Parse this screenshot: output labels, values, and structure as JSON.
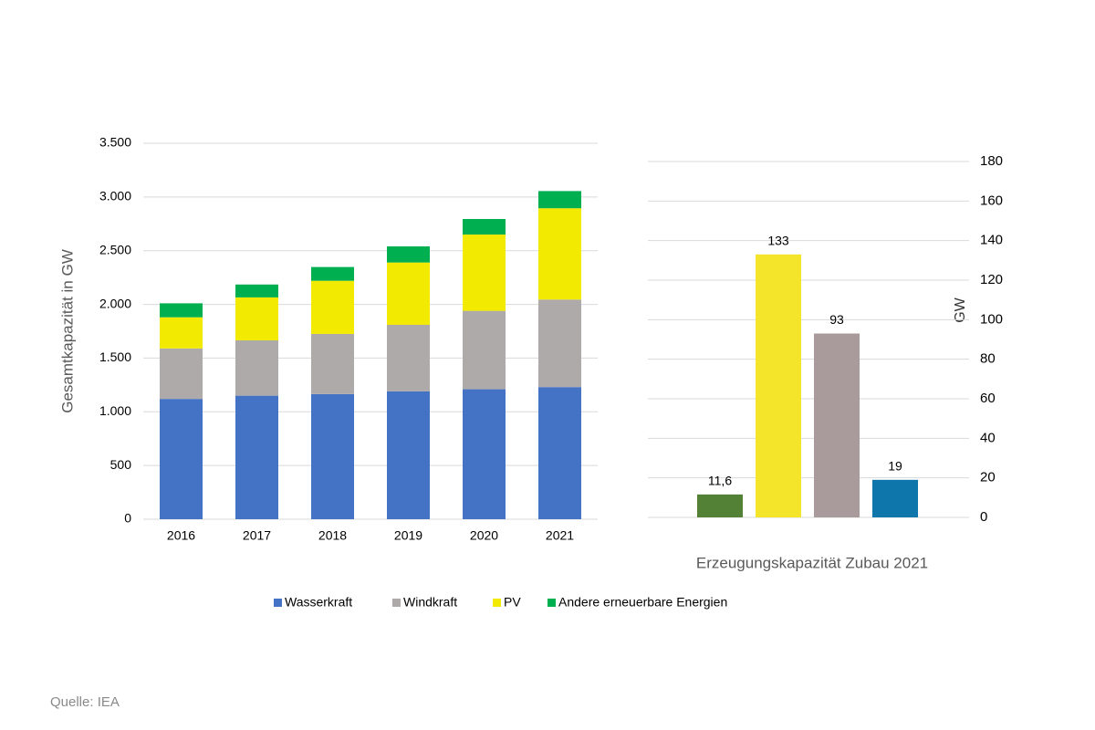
{
  "source": "Quelle: IEA",
  "chart_data": [
    {
      "type": "stacked-bar",
      "y_label": "Gesamtkapazität in GW",
      "categories": [
        "2016",
        "2017",
        "2018",
        "2019",
        "2020",
        "2021"
      ],
      "series": [
        {
          "name": "Wasserkraft",
          "color": "#4472c4",
          "values": [
            1120,
            1150,
            1165,
            1190,
            1210,
            1230
          ]
        },
        {
          "name": "Windkraft",
          "color": "#aeaaaa",
          "values": [
            470,
            515,
            560,
            620,
            730,
            815
          ]
        },
        {
          "name": "PV",
          "color": "#f2ea00",
          "values": [
            290,
            400,
            495,
            580,
            710,
            850
          ]
        },
        {
          "name": "Andere erneuerbare Energien",
          "color": "#00b050",
          "values": [
            130,
            120,
            128,
            150,
            145,
            160
          ]
        }
      ],
      "ylim": [
        0,
        3500
      ],
      "yticks": [
        0,
        500,
        {
          "value": 1000,
          "label": "1.000"
        },
        {
          "value": 1500,
          "label": "1.500"
        },
        {
          "value": 2000,
          "label": "2.000"
        },
        {
          "value": 2500,
          "label": "2.500"
        },
        {
          "value": 3000,
          "label": "3.000"
        },
        {
          "value": 3500,
          "label": "3.500"
        }
      ],
      "grid": true
    },
    {
      "type": "bar",
      "x_label": "Erzeugungskapazität Zubau 2021",
      "y_label": "GW",
      "values": [
        11.6,
        133,
        93,
        19
      ],
      "value_labels": [
        "11,6",
        "133",
        "93",
        "19"
      ],
      "colors": [
        "#538135",
        "#f5e52a",
        "#a99b9c",
        "#0e76ab"
      ],
      "ylim": [
        0,
        180
      ],
      "yticks": [
        0,
        20,
        40,
        60,
        80,
        100,
        120,
        140,
        160,
        180
      ],
      "grid": true
    }
  ]
}
